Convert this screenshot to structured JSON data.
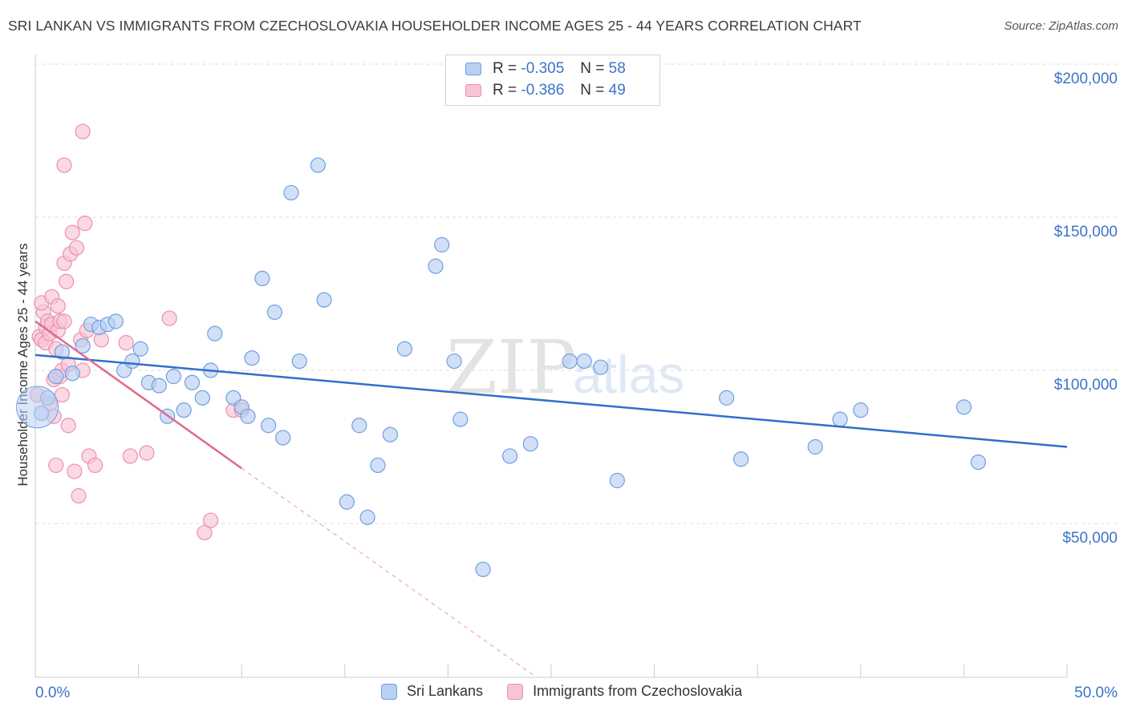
{
  "title": "SRI LANKAN VS IMMIGRANTS FROM CZECHOSLOVAKIA HOUSEHOLDER INCOME AGES 25 - 44 YEARS CORRELATION CHART",
  "source": "Source: ZipAtlas.com",
  "watermark": {
    "zip": "ZIP",
    "atlas": "atlas"
  },
  "legend": {
    "rows": [
      {
        "r_label": "R =",
        "r_value": "-0.305",
        "n_label": "N =",
        "n_value": "58"
      },
      {
        "r_label": "R =",
        "r_value": "-0.386",
        "n_label": "N =",
        "n_value": "49"
      }
    ]
  },
  "colors": {
    "blue_fill": "#b9d0f2",
    "blue_stroke": "#6f9fe0",
    "blue_line": "#2f6fcc",
    "pink_fill": "#f8c4d4",
    "pink_stroke": "#ec8fae",
    "pink_line": "#e0698f",
    "axis_text": "#3b74c8",
    "grid": "#dddddd"
  },
  "chart_data": {
    "type": "scatter",
    "title": "SRI LANKAN VS IMMIGRANTS FROM CZECHOSLOVAKIA HOUSEHOLDER INCOME AGES 25 - 44 YEARS CORRELATION CHART",
    "xlabel": "",
    "ylabel": "Householder Income Ages 25 - 44 years",
    "xlim": [
      0,
      50
    ],
    "ylim": [
      0,
      205000
    ],
    "x_tick_labels": [
      "0.0%",
      "50.0%"
    ],
    "y_ticks": [
      50000,
      100000,
      150000,
      200000
    ],
    "y_tick_labels": [
      "$50,000",
      "$100,000",
      "$150,000",
      "$200,000"
    ],
    "grid": "horizontal dashed",
    "legend_position": "bottom",
    "series": [
      {
        "name": "Sri Lankans",
        "color": "#6f9fe0",
        "trend": {
          "x": [
            0,
            50
          ],
          "y": [
            105000,
            75000
          ],
          "style": "solid"
        },
        "points": [
          [
            0.3,
            86000
          ],
          [
            0.6,
            91000
          ],
          [
            1.0,
            98000
          ],
          [
            1.3,
            106000
          ],
          [
            1.8,
            99000
          ],
          [
            2.3,
            108000
          ],
          [
            2.7,
            115000
          ],
          [
            3.1,
            114000
          ],
          [
            3.5,
            115000
          ],
          [
            3.9,
            116000
          ],
          [
            4.3,
            100000
          ],
          [
            4.7,
            103000
          ],
          [
            5.1,
            107000
          ],
          [
            5.5,
            96000
          ],
          [
            6.0,
            95000
          ],
          [
            6.4,
            85000
          ],
          [
            6.7,
            98000
          ],
          [
            7.2,
            87000
          ],
          [
            7.6,
            96000
          ],
          [
            8.1,
            91000
          ],
          [
            8.5,
            100000
          ],
          [
            8.7,
            112000
          ],
          [
            9.6,
            91000
          ],
          [
            10.0,
            88000
          ],
          [
            10.3,
            85000
          ],
          [
            10.5,
            104000
          ],
          [
            11.0,
            130000
          ],
          [
            11.3,
            82000
          ],
          [
            11.6,
            119000
          ],
          [
            12.0,
            78000
          ],
          [
            12.4,
            158000
          ],
          [
            12.8,
            103000
          ],
          [
            13.7,
            167000
          ],
          [
            14.0,
            123000
          ],
          [
            15.1,
            57000
          ],
          [
            15.7,
            82000
          ],
          [
            16.1,
            52000
          ],
          [
            16.6,
            69000
          ],
          [
            17.2,
            79000
          ],
          [
            17.9,
            107000
          ],
          [
            19.4,
            134000
          ],
          [
            19.7,
            141000
          ],
          [
            20.3,
            103000
          ],
          [
            20.6,
            84000
          ],
          [
            21.7,
            35000
          ],
          [
            23.0,
            72000
          ],
          [
            24.0,
            76000
          ],
          [
            25.9,
            103000
          ],
          [
            26.6,
            103000
          ],
          [
            27.4,
            101000
          ],
          [
            28.2,
            64000
          ],
          [
            33.5,
            91000
          ],
          [
            34.2,
            71000
          ],
          [
            37.8,
            75000
          ],
          [
            39.0,
            84000
          ],
          [
            40.0,
            87000
          ],
          [
            45.0,
            88000
          ],
          [
            45.7,
            70000
          ]
        ]
      },
      {
        "name": "Immigrants from Czechoslovakia",
        "color": "#ec8fae",
        "trend": {
          "x": [
            0,
            10
          ],
          "y": [
            116000,
            68000
          ],
          "style": "solid",
          "extended": {
            "x": [
              10,
              25
            ],
            "y": [
              68000,
              -3000
            ],
            "style": "dashed"
          }
        },
        "points": [
          [
            0.1,
            92000
          ],
          [
            0.2,
            111000
          ],
          [
            0.3,
            110000
          ],
          [
            0.4,
            119000
          ],
          [
            0.3,
            122000
          ],
          [
            0.5,
            109000
          ],
          [
            0.5,
            114000
          ],
          [
            0.6,
            116000
          ],
          [
            0.7,
            112000
          ],
          [
            0.8,
            115000
          ],
          [
            0.8,
            124000
          ],
          [
            0.7,
            89000
          ],
          [
            0.9,
            97000
          ],
          [
            0.9,
            85000
          ],
          [
            1.0,
            107000
          ],
          [
            1.0,
            69000
          ],
          [
            1.1,
            113000
          ],
          [
            1.1,
            121000
          ],
          [
            1.2,
            116000
          ],
          [
            1.2,
            98000
          ],
          [
            1.3,
            100000
          ],
          [
            1.3,
            92000
          ],
          [
            1.4,
            116000
          ],
          [
            1.4,
            135000
          ],
          [
            1.4,
            167000
          ],
          [
            1.5,
            129000
          ],
          [
            1.6,
            102000
          ],
          [
            1.6,
            82000
          ],
          [
            1.7,
            138000
          ],
          [
            1.8,
            145000
          ],
          [
            1.9,
            67000
          ],
          [
            2.0,
            140000
          ],
          [
            2.1,
            59000
          ],
          [
            2.2,
            110000
          ],
          [
            2.3,
            100000
          ],
          [
            2.3,
            178000
          ],
          [
            2.4,
            148000
          ],
          [
            2.5,
            113000
          ],
          [
            2.6,
            72000
          ],
          [
            2.9,
            69000
          ],
          [
            3.2,
            110000
          ],
          [
            4.4,
            109000
          ],
          [
            4.6,
            72000
          ],
          [
            5.4,
            73000
          ],
          [
            6.5,
            117000
          ],
          [
            8.2,
            47000
          ],
          [
            8.5,
            51000
          ],
          [
            9.6,
            87000
          ],
          [
            10.0,
            87000
          ]
        ]
      }
    ]
  }
}
